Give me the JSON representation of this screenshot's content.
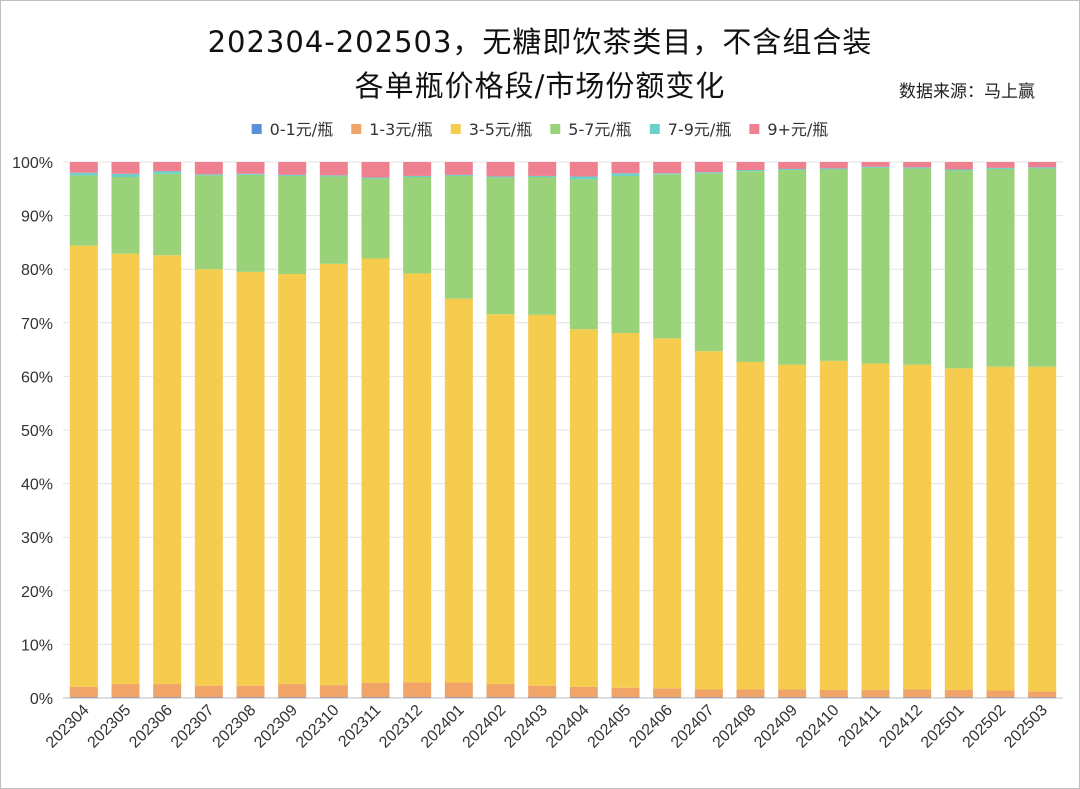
{
  "title_line1": "202304-202503，无糖即饮茶类目，不含组合装",
  "title_line2": "各单瓶价格段/市场份额变化",
  "source": "数据来源：马上赢",
  "colors": {
    "0-1元/瓶": "#5b8fd8",
    "1-3元/瓶": "#f0a468",
    "3-5元/瓶": "#f5cc4e",
    "5-7元/瓶": "#9ad27a",
    "7-9元/瓶": "#6ccfca",
    "9+元/瓶": "#ee8090"
  },
  "chart_data": {
    "type": "bar",
    "stacked": true,
    "percent": true,
    "title": "202304-202503，无糖即饮茶类目，不含组合装 各单瓶价格段/市场份额变化",
    "xlabel": "",
    "ylabel": "",
    "ylim": [
      0,
      100
    ],
    "y_ticks": [
      "0%",
      "10%",
      "20%",
      "30%",
      "40%",
      "50%",
      "60%",
      "70%",
      "80%",
      "90%",
      "100%"
    ],
    "grid": true,
    "legend_position": "top",
    "categories": [
      "202304",
      "202305",
      "202306",
      "202307",
      "202308",
      "202309",
      "202310",
      "202311",
      "202312",
      "202401",
      "202402",
      "202403",
      "202404",
      "202405",
      "202406",
      "202407",
      "202408",
      "202409",
      "202410",
      "202411",
      "202412",
      "202501",
      "202502",
      "202503"
    ],
    "series": [
      {
        "name": "0-1元/瓶",
        "values": [
          0.1,
          0.1,
          0.1,
          0.1,
          0.1,
          0.1,
          0.1,
          0.1,
          0.1,
          0.1,
          0.1,
          0.1,
          0.1,
          0.1,
          0.1,
          0.1,
          0.1,
          0.1,
          0.1,
          0.1,
          0.1,
          0.1,
          0.1,
          0.1
        ]
      },
      {
        "name": "1-3元/瓶",
        "values": [
          2.0,
          2.5,
          2.5,
          2.2,
          2.2,
          2.5,
          2.3,
          2.7,
          2.8,
          2.8,
          2.5,
          2.2,
          2.0,
          1.8,
          1.7,
          1.5,
          1.5,
          1.5,
          1.4,
          1.4,
          1.5,
          1.4,
          1.3,
          1.1
        ]
      },
      {
        "name": "3-5元/瓶",
        "values": [
          82.3,
          80.3,
          80.0,
          77.7,
          77.2,
          76.5,
          78.6,
          79.2,
          76.3,
          71.6,
          69.0,
          69.2,
          66.7,
          66.2,
          65.3,
          63.1,
          61.1,
          60.6,
          61.4,
          60.9,
          60.6,
          60.0,
          60.4,
          60.6
        ]
      },
      {
        "name": "5-7元/瓶",
        "values": [
          13.1,
          14.3,
          15.2,
          17.5,
          18.1,
          18.3,
          16.3,
          14.9,
          18.0,
          22.9,
          25.5,
          25.7,
          28.0,
          29.3,
          30.6,
          33.2,
          35.6,
          36.3,
          35.7,
          36.5,
          36.6,
          36.9,
          36.9,
          37.0
        ]
      },
      {
        "name": "7-9元/瓶",
        "values": [
          0.5,
          0.6,
          0.5,
          0.2,
          0.2,
          0.2,
          0.2,
          0.2,
          0.2,
          0.2,
          0.2,
          0.2,
          0.5,
          0.5,
          0.2,
          0.2,
          0.2,
          0.2,
          0.2,
          0.2,
          0.2,
          0.2,
          0.2,
          0.2
        ]
      },
      {
        "name": "9+元/瓶",
        "values": [
          2.0,
          2.2,
          1.7,
          2.3,
          2.2,
          2.4,
          2.5,
          2.9,
          2.6,
          2.4,
          2.7,
          2.6,
          2.7,
          2.1,
          2.1,
          1.9,
          1.5,
          1.3,
          1.2,
          0.9,
          1.0,
          1.4,
          1.1,
          1.0
        ]
      }
    ]
  }
}
